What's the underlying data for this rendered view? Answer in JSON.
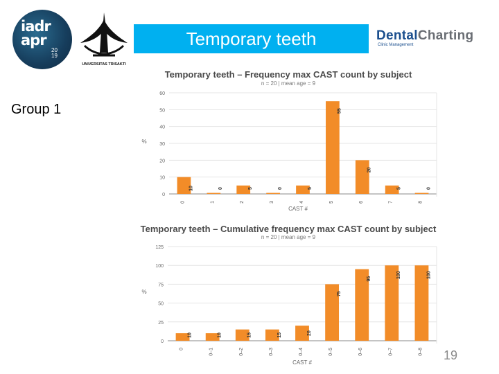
{
  "header": {
    "title": "Temporary teeth",
    "title_bg": "#00b0f0",
    "logos": {
      "iadr": {
        "text": "iadr\napr",
        "year": "20\n19"
      },
      "trisakti": {
        "caption": "UNIVERSITAS TRISAKTI"
      },
      "dental_charting": {
        "name_part1": "Dental",
        "name_part2": "Charting",
        "tagline": "Clinic Management"
      }
    }
  },
  "group_label": "Group 1",
  "slide_number": "19",
  "colors": {
    "bar": "#f28c28",
    "grid": "#e4e4e4",
    "axis": "#888888"
  },
  "chart_data": [
    {
      "type": "bar",
      "title": "Temporary teeth – Frequency max CAST count by subject",
      "subtitle": "n = 20 | mean age = 9",
      "xlabel": "CAST #",
      "ylabel": "%",
      "categories": [
        "0",
        "1",
        "2",
        "3",
        "4",
        "5",
        "6",
        "7",
        "8"
      ],
      "values": [
        10,
        0,
        5,
        0,
        5,
        55,
        20,
        5,
        0
      ],
      "ylim": [
        0,
        60
      ],
      "yticks": [
        "0",
        "10",
        "20",
        "30",
        "40",
        "50",
        "60"
      ],
      "grid": true
    },
    {
      "type": "bar",
      "title": "Temporary teeth – Cumulative frequency max CAST count by subject",
      "subtitle": "n = 20 | mean age = 9",
      "xlabel": "CAST #",
      "ylabel": "%",
      "categories": [
        "0",
        "0–1",
        "0–2",
        "0–3",
        "0–4",
        "0–5",
        "0–6",
        "0–7",
        "0–8"
      ],
      "values": [
        10,
        10,
        15,
        15,
        20,
        75,
        95,
        100,
        100
      ],
      "ylim": [
        0,
        125
      ],
      "yticks": [
        "0",
        "25",
        "50",
        "75",
        "100",
        "125"
      ],
      "grid": true
    }
  ]
}
